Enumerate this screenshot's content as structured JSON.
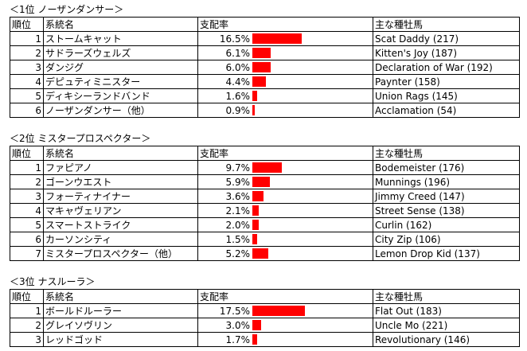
{
  "headers": {
    "rank": "順位",
    "lineage": "系統名",
    "share": "支配率",
    "sire": "主な種牡馬"
  },
  "bar_color": "#ff0000",
  "sections": [
    {
      "title": "＜1位  ノーザンダンサー＞",
      "rows": [
        {
          "rank": "1",
          "name": "ストームキャット",
          "rate": "16.5%",
          "value": 16.5,
          "sire": "Scat Daddy (217)"
        },
        {
          "rank": "2",
          "name": "サドラーズウェルズ",
          "rate": "6.1%",
          "value": 6.1,
          "sire": "Kitten's Joy (187)"
        },
        {
          "rank": "3",
          "name": "ダンジグ",
          "rate": "6.0%",
          "value": 6.0,
          "sire": "Declaration of War (192)"
        },
        {
          "rank": "4",
          "name": "デピュティミニスター",
          "rate": "4.4%",
          "value": 4.4,
          "sire": "Paynter (158)"
        },
        {
          "rank": "5",
          "name": "ディキシーランドバンド",
          "rate": "1.6%",
          "value": 1.6,
          "sire": "Union Rags (145)"
        },
        {
          "rank": "6",
          "name": "ノーザンダンサー（他）",
          "rate": "0.9%",
          "value": 0.9,
          "sire": "Acclamation (54)"
        }
      ]
    },
    {
      "title": "＜2位  ミスタープロスペクター＞",
      "rows": [
        {
          "rank": "1",
          "name": "ファピアノ",
          "rate": "9.7%",
          "value": 9.7,
          "sire": "Bodemeister (176)"
        },
        {
          "rank": "2",
          "name": "ゴーンウエスト",
          "rate": "5.9%",
          "value": 5.9,
          "sire": "Munnings (196)"
        },
        {
          "rank": "3",
          "name": "フォーティナイナー",
          "rate": "3.6%",
          "value": 3.6,
          "sire": "Jimmy Creed (147)"
        },
        {
          "rank": "4",
          "name": "マキャヴェリアン",
          "rate": "2.1%",
          "value": 2.1,
          "sire": "Street Sense (138)"
        },
        {
          "rank": "5",
          "name": "スマートストライク",
          "rate": "2.0%",
          "value": 2.0,
          "sire": "Curlin (162)"
        },
        {
          "rank": "6",
          "name": "カーソンシティ",
          "rate": "1.5%",
          "value": 1.5,
          "sire": "City Zip (106)"
        },
        {
          "rank": "7",
          "name": "ミスタープロスペクター（他）",
          "rate": "5.2%",
          "value": 5.2,
          "sire": "Lemon Drop Kid (137)"
        }
      ]
    },
    {
      "title": "＜3位  ナスルーラ＞",
      "rows": [
        {
          "rank": "1",
          "name": "ボールドルーラー",
          "rate": "17.5%",
          "value": 17.5,
          "sire": "Flat Out (183)"
        },
        {
          "rank": "2",
          "name": "グレイソヴリン",
          "rate": "3.0%",
          "value": 3.0,
          "sire": "Uncle Mo (221)"
        },
        {
          "rank": "3",
          "name": "レッドゴッド",
          "rate": "1.7%",
          "value": 1.7,
          "sire": "Revolutionary (146)"
        }
      ]
    }
  ]
}
